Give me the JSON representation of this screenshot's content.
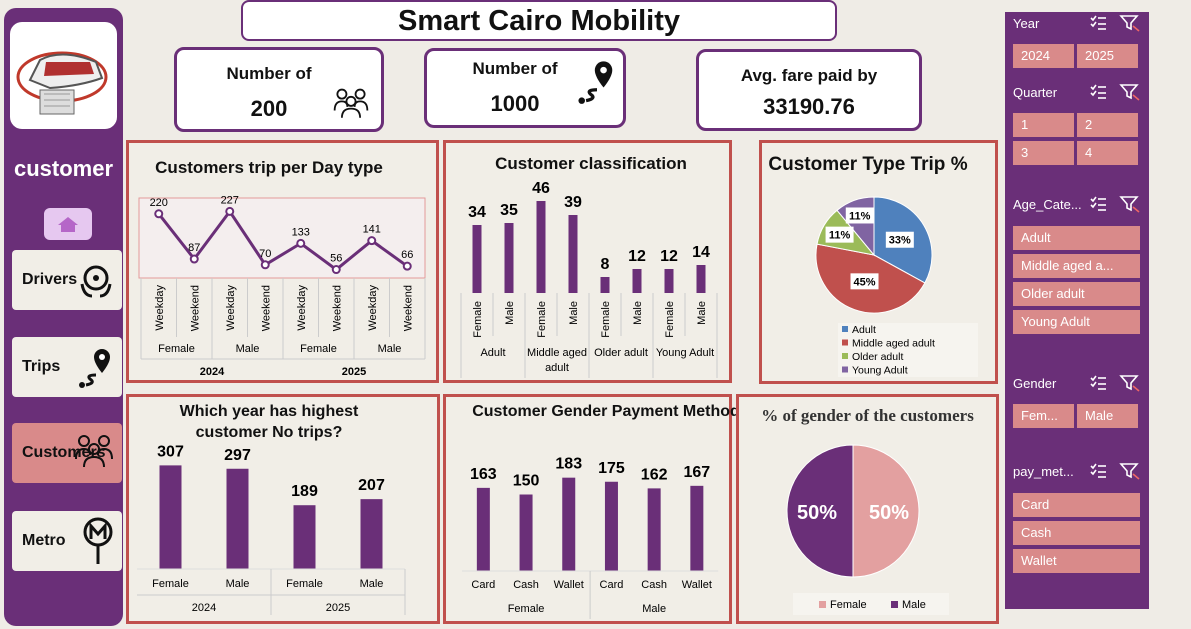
{
  "title": "Smart Cairo Mobility",
  "nav": {
    "section_title": "customer",
    "items": [
      {
        "label": "Drivers",
        "icon": "steering-hands-icon"
      },
      {
        "label": "Trips",
        "icon": "route-pin-icon"
      },
      {
        "label": "Customers",
        "icon": "users-group-icon"
      },
      {
        "label": "Metro",
        "icon": "metro-sign-icon"
      }
    ]
  },
  "kpis": [
    {
      "label": "Number of",
      "value": "200",
      "icon": "users-group-icon"
    },
    {
      "label": "Number of",
      "value": "1000",
      "icon": "route-pin-icon"
    },
    {
      "label": "Avg. fare paid by",
      "value": "33190.76"
    }
  ],
  "charts": {
    "trips_per_day": {
      "type": "line",
      "title": "Customers trip per Day type",
      "categories": [
        "Weekday",
        "Weekend",
        "Weekday",
        "Weekend",
        "Weekday",
        "Weekend",
        "Weekday",
        "Weekend"
      ],
      "gender_groups": [
        "Female",
        "Male",
        "Female",
        "Male"
      ],
      "year_groups": [
        "2024",
        "2025"
      ],
      "values": [
        220,
        87,
        227,
        70,
        133,
        56,
        141,
        66
      ],
      "color": "#6a2f78"
    },
    "classification": {
      "type": "bar",
      "title": "Customer classification",
      "categories": [
        "Female",
        "Male",
        "Female",
        "Male",
        "Female",
        "Male",
        "Female",
        "Male"
      ],
      "groups": [
        "Adult",
        "Middle aged adult",
        "Older adult",
        "Young Adult"
      ],
      "values": [
        34,
        35,
        46,
        39,
        8,
        12,
        12,
        14
      ],
      "color": "#6a2f78"
    },
    "customer_type": {
      "type": "pie",
      "title": "Customer Type Trip %",
      "slices": [
        {
          "label": "Adult",
          "value": 33,
          "text": "33%",
          "color": "#4f81bd"
        },
        {
          "label": "Middle aged adult",
          "value": 45,
          "text": "45%",
          "color": "#c0504d"
        },
        {
          "label": "Older adult",
          "value": 11,
          "text": "11%",
          "color": "#9bbb59"
        },
        {
          "label": "Young Adult",
          "value": 11,
          "text": "11%",
          "color": "#8064a2"
        }
      ]
    },
    "year_trips": {
      "type": "bar",
      "title": "Which year has highest customer No trips?",
      "categories": [
        "Female",
        "Male",
        "Female",
        "Male"
      ],
      "groups": [
        "2024",
        "2025"
      ],
      "values": [
        307,
        297,
        189,
        207
      ],
      "color": "#6a2f78"
    },
    "gender_payment": {
      "type": "bar",
      "title": "Customer Gender Payment Method",
      "categories": [
        "Card",
        "Cash",
        "Wallet",
        "Card",
        "Cash",
        "Wallet"
      ],
      "groups": [
        "Female",
        "Male"
      ],
      "values": [
        163,
        150,
        183,
        175,
        162,
        167
      ],
      "color": "#6a2f78"
    },
    "gender_pct": {
      "type": "pie",
      "title": "% of gender of the customers",
      "slices": [
        {
          "label": "Female",
          "value": 50,
          "text": "50%",
          "color": "#e3a0a0"
        },
        {
          "label": "Male",
          "value": 50,
          "text": "50%",
          "color": "#6a2f78"
        }
      ]
    }
  },
  "slicers": [
    {
      "title": "Year",
      "items": [
        "2024",
        "2025"
      ],
      "cols": 2
    },
    {
      "title": "Quarter",
      "items": [
        "1",
        "2",
        "3",
        "4"
      ],
      "cols": 2
    },
    {
      "title": "Age_Cate...",
      "items": [
        "Adult",
        "Middle aged a...",
        "Older adult",
        "Young Adult"
      ],
      "cols": 1
    },
    {
      "title": "Gender",
      "items": [
        "Fem...",
        "Male"
      ],
      "cols": 2
    },
    {
      "title": "pay_met...",
      "items": [
        "Card",
        "Cash",
        "Wallet"
      ],
      "cols": 1
    }
  ]
}
